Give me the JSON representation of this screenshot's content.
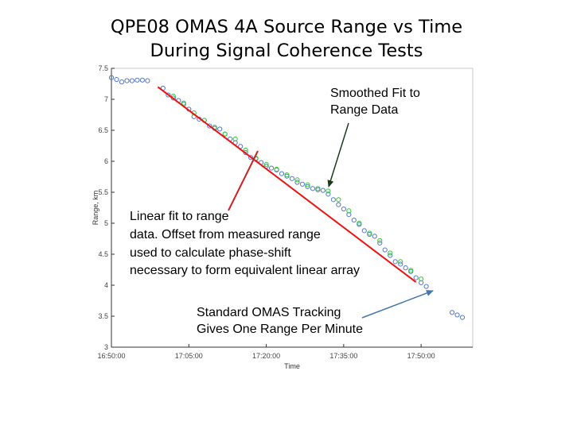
{
  "slide": {
    "title_line1": "QPE08 OMAS 4A Source Range vs Time",
    "title_line2": "During Signal Coherence Tests"
  },
  "annotations": {
    "smoothed_fit_line1": "Smoothed Fit to",
    "smoothed_fit_line2": "Range Data",
    "linear_fit_line1": "Linear fit to range",
    "linear_fit_line2": "data. Offset from measured range",
    "linear_fit_line3": "used to calculate phase-shift",
    "linear_fit_line4": "necessary to form equivalent linear array",
    "omas_line1": "Standard OMAS Tracking",
    "omas_line2": "Gives One Range Per Minute"
  },
  "chart_data": {
    "type": "scatter",
    "title": "",
    "xlabel": "Time",
    "ylabel": "Range, km",
    "xlim": [
      "16:50:00",
      "18:00:00"
    ],
    "ylim": [
      3,
      7.5
    ],
    "x_ticks": [
      "16:50:00",
      "17:05:00",
      "17:20:00",
      "17:35:00",
      "17:50:00"
    ],
    "y_ticks": [
      "3",
      "3.5",
      "4",
      "4.5",
      "5",
      "5.5",
      "6",
      "6.5",
      "7",
      "7.5"
    ],
    "colors": {
      "omas": "#5577cc",
      "smoothed": "#33cc33",
      "linear_fit": "#ee1111",
      "arrow_smoothed": "#1a3a1a",
      "arrow_linear": "#cc2222",
      "arrow_omas": "#4477aa"
    },
    "series": [
      {
        "name": "",
        "marker": "circle",
        "color": "#5577cc",
        "x": [
          "16:50:00",
          "16:51:00",
          "16:52:00",
          "16:53:00",
          "16:54:00",
          "16:55:00",
          "16:56:00",
          "16:57:00",
          "17:00:00",
          "17:01:00",
          "17:02:00",
          "17:03:00",
          "17:04:00",
          "17:05:00",
          "17:06:00",
          "17:07:00",
          "17:08:00",
          "17:09:00",
          "17:10:00",
          "17:11:00",
          "17:12:00",
          "17:13:00",
          "17:14:00",
          "17:15:00",
          "17:16:00",
          "17:17:00",
          "17:18:00",
          "17:19:00",
          "17:20:00",
          "17:21:00",
          "17:22:00",
          "17:23:00",
          "17:24:00",
          "17:25:00",
          "17:26:00",
          "17:27:00",
          "17:28:00",
          "17:29:00",
          "17:30:00",
          "17:31:00",
          "17:32:00",
          "17:33:00",
          "17:34:00",
          "17:35:00",
          "17:36:00",
          "17:37:00",
          "17:38:00",
          "17:39:00",
          "17:40:00",
          "17:41:00",
          "17:42:00",
          "17:43:00",
          "17:44:00",
          "17:45:00",
          "17:46:00",
          "17:47:00",
          "17:48:00",
          "17:49:00",
          "17:50:00",
          "17:51:00",
          "17:56:00",
          "17:57:00",
          "17:58:00"
        ],
        "y": [
          7.35,
          7.32,
          7.28,
          7.3,
          7.3,
          7.31,
          7.31,
          7.3,
          7.18,
          7.07,
          7.02,
          6.98,
          6.92,
          6.84,
          6.72,
          6.68,
          6.66,
          6.57,
          6.53,
          6.52,
          6.44,
          6.36,
          6.3,
          6.24,
          6.14,
          6.06,
          6.04,
          5.98,
          5.92,
          5.89,
          5.86,
          5.8,
          5.76,
          5.72,
          5.66,
          5.63,
          5.59,
          5.56,
          5.54,
          5.53,
          5.47,
          5.38,
          5.3,
          5.23,
          5.14,
          5.05,
          4.98,
          4.88,
          4.82,
          4.79,
          4.68,
          4.57,
          4.48,
          4.38,
          4.34,
          4.28,
          4.22,
          4.12,
          4.04,
          3.98,
          3.56,
          3.52,
          3.48
        ]
      },
      {
        "name": "",
        "marker": "circle",
        "color": "#33cc33",
        "x": [
          "17:02:00",
          "17:04:00",
          "17:06:00",
          "17:08:00",
          "17:10:00",
          "17:12:00",
          "17:14:00",
          "17:16:00",
          "17:18:00",
          "17:20:00",
          "17:22:00",
          "17:24:00",
          "17:26:00",
          "17:28:00",
          "17:30:00",
          "17:32:00",
          "17:34:00",
          "17:36:00",
          "17:38:00",
          "17:40:00",
          "17:42:00",
          "17:44:00",
          "17:46:00",
          "17:48:00",
          "17:50:00"
        ],
        "y": [
          7.05,
          6.94,
          6.78,
          6.66,
          6.55,
          6.44,
          6.36,
          6.18,
          6.05,
          5.95,
          5.87,
          5.78,
          5.7,
          5.62,
          5.56,
          5.52,
          5.38,
          5.2,
          5.0,
          4.84,
          4.72,
          4.52,
          4.38,
          4.24,
          4.1
        ]
      },
      {
        "name": "",
        "type": "line",
        "color": "#ee1111",
        "x": [
          "16:59:00",
          "17:49:00"
        ],
        "y": [
          7.2,
          4.05
        ]
      }
    ],
    "grid": false
  }
}
